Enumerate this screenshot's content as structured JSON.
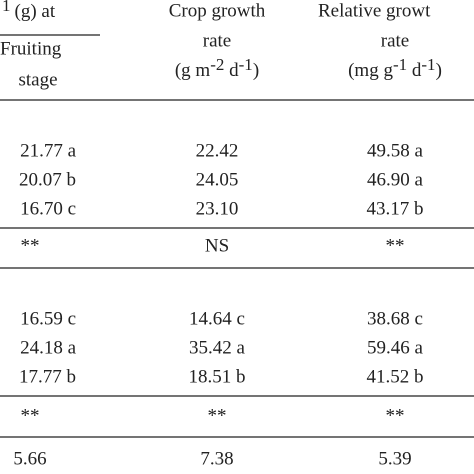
{
  "header": {
    "col1": {
      "line1_sup": "1",
      "line1": "(g) at",
      "line2": "Fruiting",
      "line3": "stage"
    },
    "col2": {
      "line1": "Crop growth",
      "line2": "rate",
      "unit": [
        "(g m",
        "-2",
        " d",
        "-1",
        ")"
      ]
    },
    "col3": {
      "line1": "Relative growt",
      "line2": "rate",
      "unit": [
        "(mg g",
        "-1",
        " d",
        "-1",
        ")"
      ]
    }
  },
  "rows": [
    [
      "21.77 a",
      "22.42",
      "49.58 a"
    ],
    [
      "20.07 b",
      "24.05",
      "46.90 a"
    ],
    [
      "16.70 c",
      "23.10",
      "43.17 b"
    ],
    [
      "**",
      "NS",
      "**"
    ],
    [
      "16.59 c",
      "14.64 c",
      "38.68 c"
    ],
    [
      "24.18 a",
      "35.42 a",
      "59.46 a"
    ],
    [
      "17.77 b",
      "18.51 b",
      "41.52 b"
    ],
    [
      "**",
      "**",
      "**"
    ],
    [
      "5.66",
      "7.38",
      "5.39"
    ]
  ]
}
